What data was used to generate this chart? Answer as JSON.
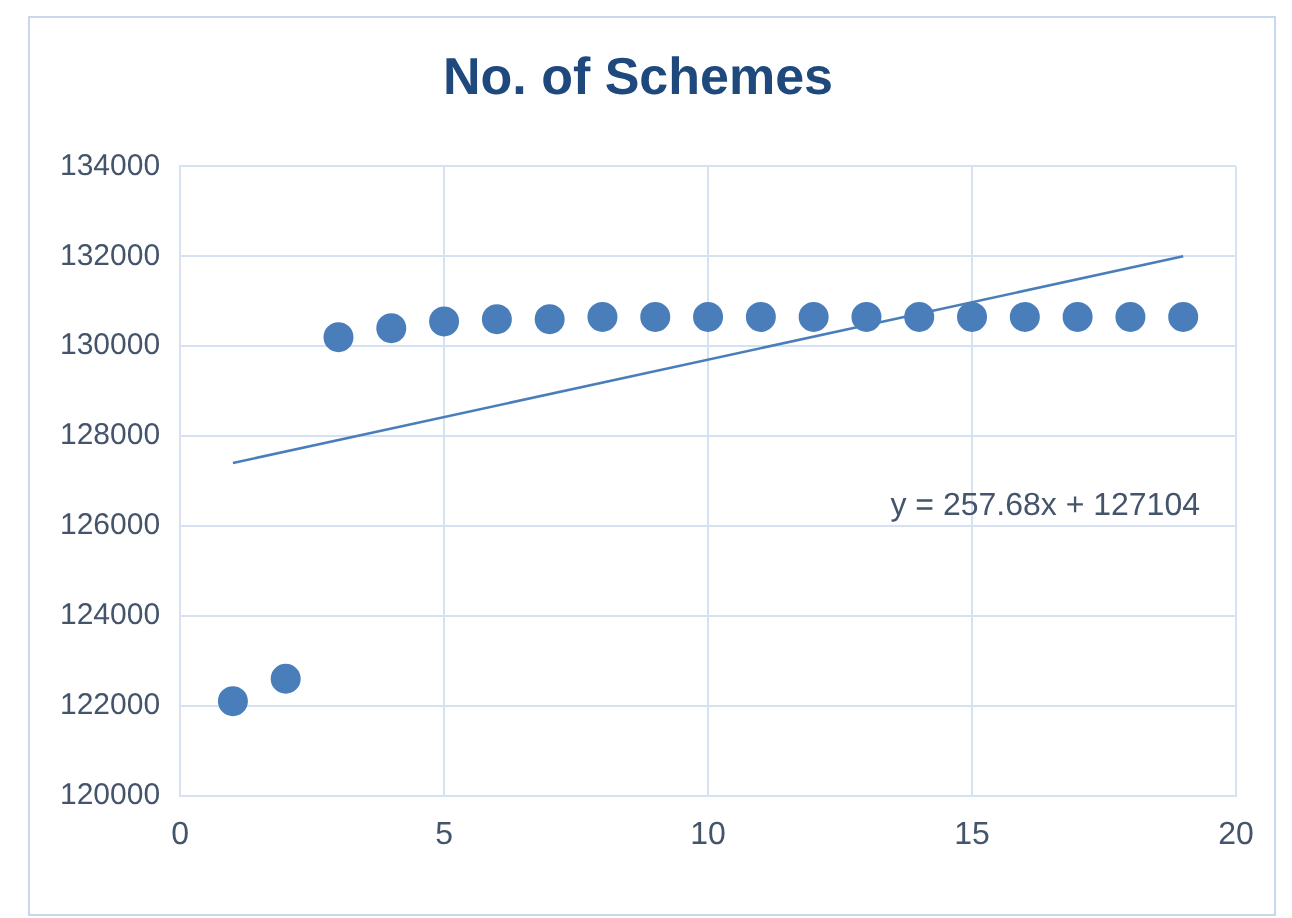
{
  "chart_data": {
    "type": "scatter",
    "title": "No. of Schemes",
    "x": [
      1,
      2,
      3,
      4,
      5,
      6,
      7,
      8,
      9,
      10,
      11,
      12,
      13,
      14,
      15,
      16,
      17,
      18,
      19
    ],
    "series": [
      {
        "color": "#4a7ebb",
        "marker": "circle",
        "values": [
          122100,
          122600,
          130200,
          130400,
          130550,
          130600,
          130600,
          130650,
          130650,
          130650,
          130650,
          130650,
          130650,
          130650,
          130650,
          130650,
          130650,
          130650,
          130650
        ]
      },
      {
        "type": "line",
        "color": "#4a7ebb",
        "marker": "none",
        "x": [
          1,
          19
        ],
        "values": [
          127400,
          132000
        ]
      }
    ],
    "annotations": [
      "y = 257.68x + 127104"
    ],
    "xlim": [
      0,
      20
    ],
    "xticks": [
      0,
      5,
      10,
      15,
      20
    ],
    "ylim": [
      120000,
      134000
    ],
    "yticks": [
      120000,
      122000,
      124000,
      126000,
      128000,
      130000,
      132000,
      134000
    ],
    "grid": true,
    "legend": false
  }
}
